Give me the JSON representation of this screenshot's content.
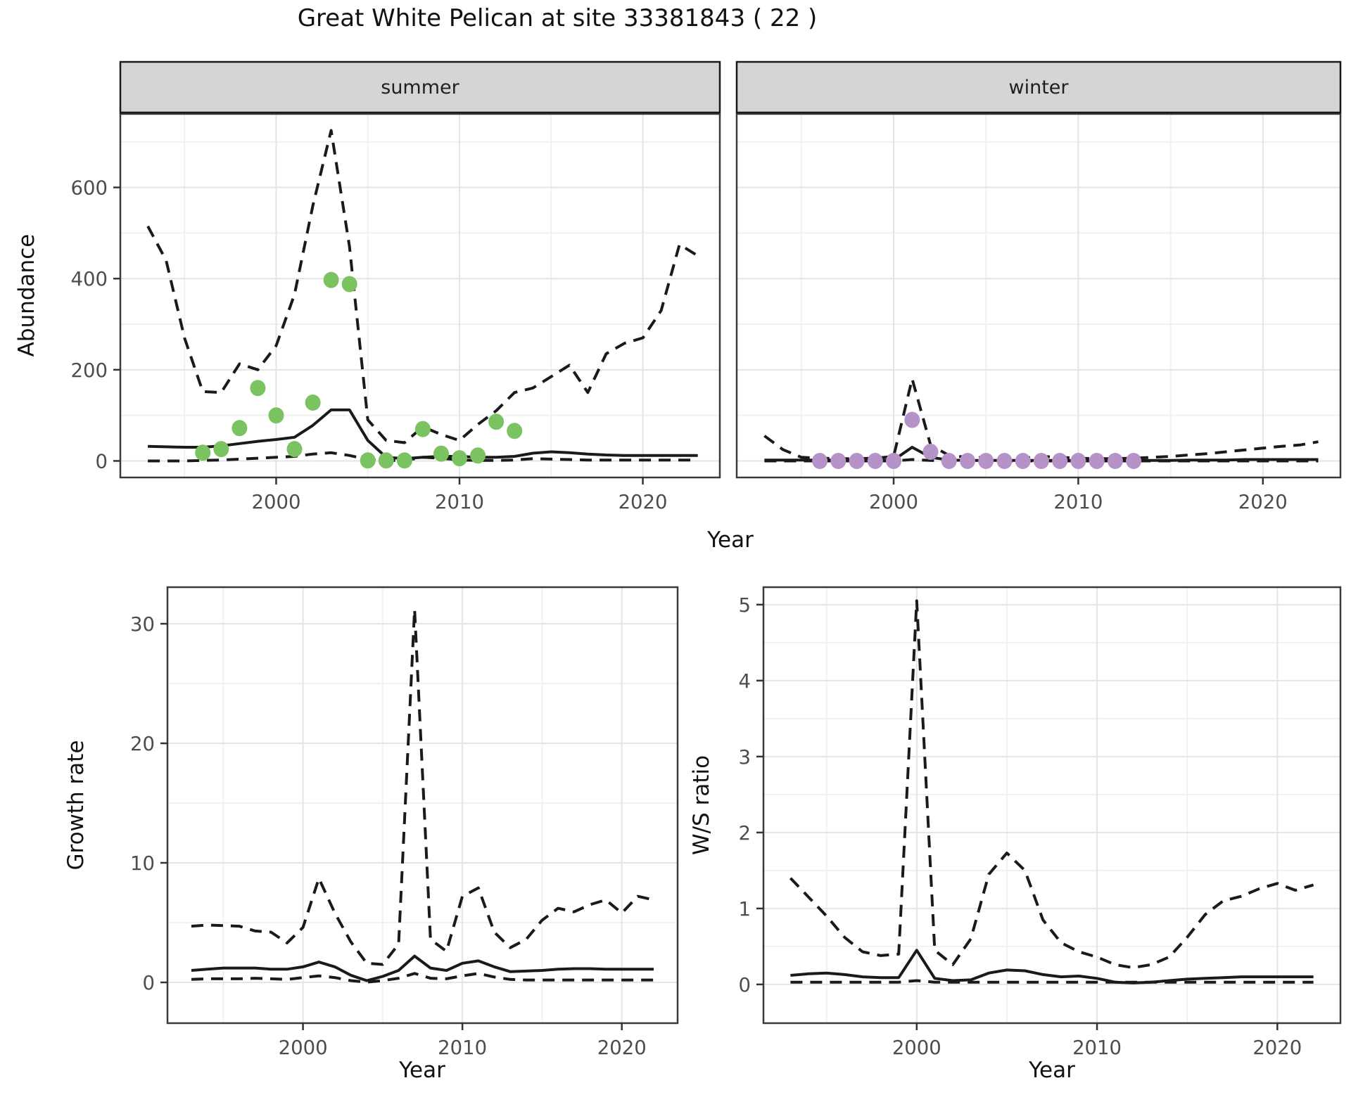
{
  "title": "Great White Pelican at site 33381843 ( 22 )",
  "facets": {
    "summer": "summer",
    "winter": "winter"
  },
  "axis_titles": {
    "abundance": "Abundance",
    "year_top": "Year",
    "growth_rate": "Growth rate",
    "ws_ratio": "W/S ratio",
    "year_bottom_left": "Year",
    "year_bottom_right": "Year"
  },
  "colors": {
    "observed_summer": "#7bc361",
    "observed_winter": "#b592c8",
    "line": "#1a1a1a",
    "strip_bg": "#d5d5d5",
    "strip_border": "#1a1a1a",
    "panel_border": "#3a3a3a",
    "grid_major": "#e4e4e4",
    "grid_minor": "#f1f1f1",
    "tick_text": "#4d4d4d",
    "tick_mark": "#333333"
  },
  "chart_data": [
    {
      "id": "abundance-summer",
      "type": "line",
      "facet_label": "summer",
      "xlabel": "Year",
      "ylabel": "Abundance",
      "x_ticks": [
        2000,
        2010,
        2020
      ],
      "y_ticks": [
        0,
        200,
        400,
        600
      ],
      "x_minor": [
        1995,
        2005,
        2015
      ],
      "y_minor": [
        100,
        300,
        500,
        700
      ],
      "xlim": [
        1991.5,
        2024.2
      ],
      "ylim": [
        -36.3,
        761.3
      ],
      "years": [
        1993,
        1994,
        1995,
        1996,
        1997,
        1998,
        1999,
        2000,
        2001,
        2002,
        2003,
        2004,
        2005,
        2006,
        2007,
        2008,
        2009,
        2010,
        2011,
        2012,
        2013,
        2014,
        2015,
        2016,
        2017,
        2018,
        2019,
        2020,
        2021,
        2022,
        2023
      ],
      "series": [
        {
          "name": "upper_95",
          "style": "dashed",
          "values": [
            515,
            440,
            270,
            152,
            150,
            213,
            200,
            253,
            365,
            560,
            725,
            470,
            90,
            45,
            40,
            75,
            58,
            45,
            80,
            110,
            150,
            160,
            185,
            210,
            150,
            235,
            258,
            270,
            330,
            475,
            450
          ]
        },
        {
          "name": "lower_95",
          "style": "dashed",
          "values": [
            0,
            0,
            0,
            1,
            2,
            4,
            6,
            8,
            10,
            15,
            18,
            12,
            3,
            1,
            1,
            8,
            6,
            2,
            1,
            1,
            2,
            5,
            4,
            3,
            2,
            2,
            2,
            2,
            2,
            2,
            2
          ]
        },
        {
          "name": "median",
          "style": "solid",
          "values": [
            32,
            31,
            30,
            30,
            33,
            38,
            43,
            47,
            52,
            78,
            112,
            112,
            45,
            8,
            5,
            8,
            10,
            10,
            8,
            8,
            10,
            17,
            20,
            18,
            15,
            13,
            12,
            12,
            12,
            12,
            12
          ]
        }
      ],
      "points": {
        "name": "observed",
        "color": "#7bc361",
        "years": [
          1996,
          1997,
          1998,
          1999,
          2000,
          2001,
          2002,
          2003,
          2004,
          2005,
          2006,
          2007,
          2008,
          2009,
          2010,
          2011,
          2012,
          2013
        ],
        "values": [
          18,
          26,
          72,
          160,
          100,
          26,
          128,
          397,
          388,
          1,
          1,
          1,
          70,
          16,
          6,
          12,
          86,
          66
        ]
      }
    },
    {
      "id": "abundance-winter",
      "type": "line",
      "facet_label": "winter",
      "xlabel": "Year",
      "ylabel": "Abundance",
      "x_ticks": [
        2000,
        2010,
        2020
      ],
      "y_ticks": [
        0,
        200,
        400,
        600
      ],
      "x_minor": [
        1995,
        2005,
        2015
      ],
      "y_minor": [
        100,
        300,
        500,
        700
      ],
      "xlim": [
        1991.5,
        2024.2
      ],
      "ylim": [
        -36.3,
        761.3
      ],
      "years": [
        1993,
        1994,
        1995,
        1996,
        1997,
        1998,
        1999,
        2000,
        2001,
        2002,
        2003,
        2004,
        2005,
        2006,
        2007,
        2008,
        2009,
        2010,
        2011,
        2012,
        2013,
        2014,
        2015,
        2016,
        2017,
        2018,
        2019,
        2020,
        2021,
        2022,
        2023
      ],
      "series": [
        {
          "name": "upper_95",
          "style": "dashed",
          "values": [
            55,
            25,
            8,
            6,
            5,
            5,
            6,
            10,
            180,
            35,
            12,
            8,
            7,
            6,
            6,
            10,
            8,
            6,
            5,
            5,
            6,
            8,
            10,
            13,
            16,
            20,
            24,
            28,
            32,
            35,
            42
          ]
        },
        {
          "name": "lower_95",
          "style": "dashed",
          "values": [
            0,
            0,
            0,
            0,
            0,
            0,
            0,
            0,
            3,
            1,
            0,
            0,
            0,
            0,
            0,
            0,
            0,
            0,
            0,
            0,
            0,
            0,
            0,
            0,
            0,
            0,
            0,
            0,
            0,
            0,
            0
          ]
        },
        {
          "name": "median",
          "style": "solid",
          "values": [
            2,
            2,
            2,
            2,
            2,
            2,
            2,
            2,
            30,
            8,
            2,
            1,
            1,
            1,
            1,
            1,
            1,
            1,
            1,
            1,
            1,
            1,
            1,
            2,
            2,
            2,
            3,
            3,
            3,
            3,
            3
          ]
        }
      ],
      "points": {
        "name": "observed",
        "color": "#b592c8",
        "years": [
          1996,
          1997,
          1998,
          1999,
          2000,
          2001,
          2002,
          2003,
          2004,
          2005,
          2006,
          2007,
          2008,
          2009,
          2010,
          2011,
          2012,
          2013
        ],
        "values": [
          0,
          0,
          0,
          0,
          0,
          90,
          20,
          0,
          0,
          0,
          0,
          0,
          0,
          0,
          0,
          0,
          0,
          0
        ]
      }
    },
    {
      "id": "growth-rate",
      "type": "line",
      "xlabel": "Year",
      "ylabel": "Growth rate",
      "x_ticks": [
        2000,
        2010,
        2020
      ],
      "y_ticks": [
        0,
        10,
        20,
        30
      ],
      "x_minor": [
        1995,
        2005,
        2015
      ],
      "y_minor": [
        5,
        15,
        25
      ],
      "xlim": [
        1991.5,
        2023.5
      ],
      "ylim": [
        -3.41,
        33.06
      ],
      "years": [
        1993,
        1994,
        1995,
        1996,
        1997,
        1998,
        1999,
        2000,
        2001,
        2002,
        2003,
        2004,
        2005,
        2006,
        2007,
        2008,
        2009,
        2010,
        2011,
        2012,
        2013,
        2014,
        2015,
        2016,
        2017,
        2018,
        2019,
        2020,
        2021,
        2022
      ],
      "series": [
        {
          "name": "upper_95",
          "style": "dashed",
          "values": [
            4.7,
            4.8,
            4.75,
            4.7,
            4.3,
            4.2,
            3.3,
            4.6,
            8.7,
            5.8,
            3.4,
            1.6,
            1.5,
            3.2,
            31.2,
            3.6,
            2.6,
            7.2,
            7.9,
            4.2,
            2.9,
            3.6,
            5.2,
            6.2,
            5.9,
            6.5,
            6.9,
            5.8,
            7.2,
            6.9
          ]
        },
        {
          "name": "lower_95",
          "style": "dashed",
          "values": [
            0.25,
            0.3,
            0.3,
            0.3,
            0.35,
            0.3,
            0.25,
            0.4,
            0.55,
            0.4,
            0.15,
            0.02,
            0.15,
            0.35,
            0.75,
            0.35,
            0.3,
            0.55,
            0.75,
            0.45,
            0.25,
            0.2,
            0.2,
            0.2,
            0.2,
            0.2,
            0.2,
            0.2,
            0.2,
            0.2
          ]
        },
        {
          "name": "median",
          "style": "solid",
          "values": [
            1.0,
            1.1,
            1.2,
            1.2,
            1.2,
            1.1,
            1.1,
            1.3,
            1.7,
            1.3,
            0.6,
            0.15,
            0.5,
            1.0,
            2.2,
            1.2,
            1.0,
            1.6,
            1.8,
            1.3,
            0.9,
            0.95,
            1.0,
            1.1,
            1.15,
            1.15,
            1.1,
            1.1,
            1.1,
            1.1
          ]
        }
      ]
    },
    {
      "id": "ws-ratio",
      "type": "line",
      "xlabel": "Year",
      "ylabel": "W/S ratio",
      "x_ticks": [
        2000,
        2010,
        2020
      ],
      "y_ticks": [
        0,
        1,
        2,
        3,
        4,
        5
      ],
      "x_minor": [
        1995,
        2005,
        2015
      ],
      "y_minor": [
        0.5,
        1.5,
        2.5,
        3.5,
        4.5
      ],
      "xlim": [
        1991.5,
        2023.5
      ],
      "ylim": [
        -0.51,
        5.23
      ],
      "years": [
        1993,
        1994,
        1995,
        1996,
        1997,
        1998,
        1999,
        2000,
        2001,
        2002,
        2003,
        2004,
        2005,
        2006,
        2007,
        2008,
        2009,
        2010,
        2011,
        2012,
        2013,
        2014,
        2015,
        2016,
        2017,
        2018,
        2019,
        2020,
        2021,
        2022
      ],
      "series": [
        {
          "name": "upper_95",
          "style": "dashed",
          "values": [
            1.4,
            1.15,
            0.9,
            0.62,
            0.43,
            0.38,
            0.4,
            5.05,
            0.45,
            0.26,
            0.6,
            1.45,
            1.73,
            1.5,
            0.85,
            0.55,
            0.43,
            0.36,
            0.26,
            0.22,
            0.26,
            0.36,
            0.62,
            0.92,
            1.1,
            1.16,
            1.26,
            1.33,
            1.24,
            1.31
          ]
        },
        {
          "name": "lower_95",
          "style": "dashed",
          "values": [
            0.03,
            0.03,
            0.03,
            0.03,
            0.03,
            0.03,
            0.03,
            0.05,
            0.03,
            0.03,
            0.03,
            0.03,
            0.03,
            0.03,
            0.03,
            0.03,
            0.03,
            0.03,
            0.03,
            0.03,
            0.03,
            0.03,
            0.03,
            0.03,
            0.03,
            0.03,
            0.03,
            0.03,
            0.03,
            0.03
          ]
        },
        {
          "name": "median",
          "style": "solid",
          "values": [
            0.12,
            0.14,
            0.15,
            0.13,
            0.1,
            0.09,
            0.09,
            0.45,
            0.08,
            0.05,
            0.06,
            0.15,
            0.19,
            0.18,
            0.13,
            0.1,
            0.11,
            0.08,
            0.03,
            0.02,
            0.03,
            0.05,
            0.07,
            0.08,
            0.09,
            0.1,
            0.1,
            0.1,
            0.1,
            0.1
          ]
        }
      ]
    }
  ]
}
